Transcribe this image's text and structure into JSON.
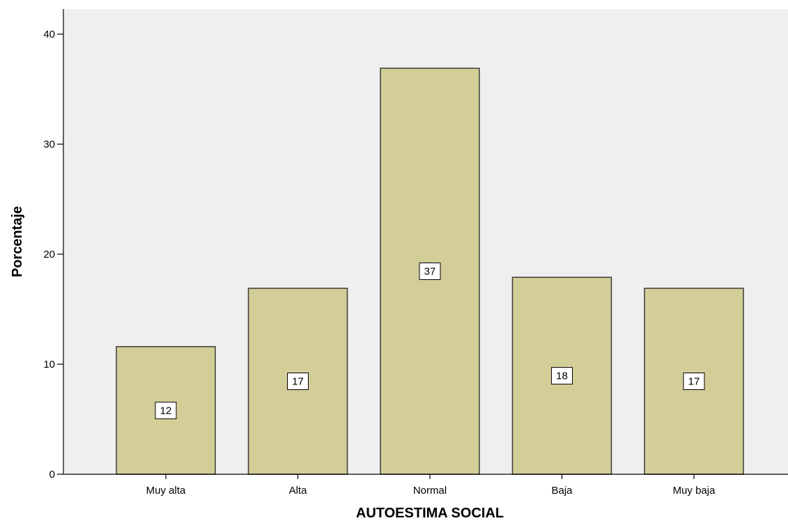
{
  "chart_data": {
    "type": "bar",
    "categories": [
      "Muy alta",
      "Alta",
      "Normal",
      "Baja",
      "Muy baja"
    ],
    "values": [
      11.6,
      16.9,
      36.9,
      17.9,
      16.9
    ],
    "data_labels": [
      "12",
      "17",
      "37",
      "18",
      "17"
    ],
    "xlabel": "AUTOESTIMA SOCIAL",
    "ylabel": "Porcentaje",
    "ylim": [
      0,
      42
    ],
    "yticks": [
      0,
      10,
      20,
      30,
      40
    ],
    "grid": false,
    "colors": {
      "plot_background": "#efefef",
      "bar_fill": "#d3ce97",
      "bar_stroke": "#3a3a3a",
      "label_box": "#ffffff"
    }
  }
}
